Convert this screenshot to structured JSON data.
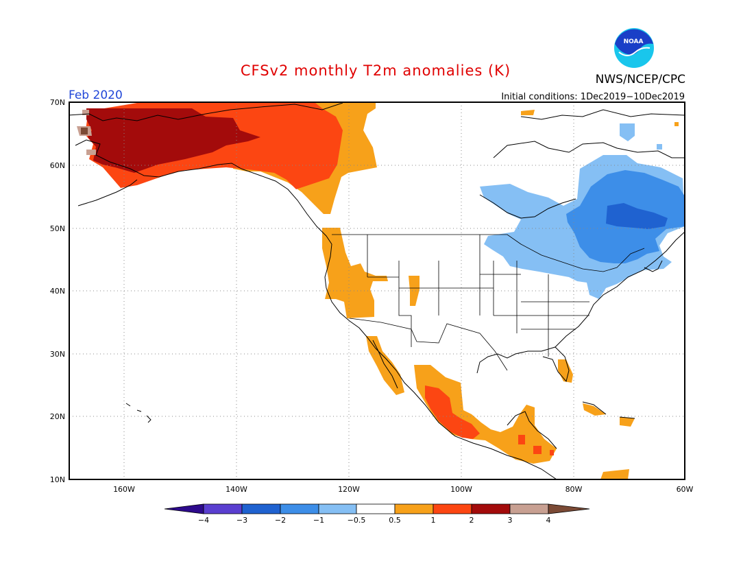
{
  "header": {
    "title": "CFSv2 monthly T2m anomalies (K)",
    "month": "Feb 2020",
    "initial_conditions": "Initial conditions: 1Dec2019−10Dec2019",
    "agency": "NWS/NCEP/CPC",
    "logo_text": "NOAA"
  },
  "map": {
    "lon_range": [
      -172,
      -60
    ],
    "lat_range": [
      10,
      70
    ],
    "x_ticks": [
      "160W",
      "140W",
      "120W",
      "100W",
      "80W",
      "60W"
    ],
    "y_ticks": [
      "70N",
      "60N",
      "50N",
      "40N",
      "30N",
      "20N",
      "10N"
    ],
    "grid": "dotted"
  },
  "colorbar": {
    "labels": [
      "−4",
      "−3",
      "−2",
      "−1",
      "−0.5",
      "0.5",
      "1",
      "2",
      "3",
      "4"
    ],
    "colors": {
      "lt_-4": "#2d0a8c",
      "-4_-3": "#5a3fd0",
      "-3_-2": "#1f62d0",
      "-2_-1": "#3d8ee8",
      "-1_-0.5": "#85bff4",
      "-0.5_0.5": "#ffffff",
      "0.5_1": "#f7a11a",
      "1_2": "#fc4612",
      "2_3": "#a30b0b",
      "3_4": "#c8a092",
      "gt_4": "#7b4a35"
    }
  },
  "colors": {
    "title": "#e00000",
    "month": "#2046d8",
    "coast": "#000000",
    "logo_blue": "#1a3fc7",
    "logo_cyan": "#19c6ec"
  }
}
